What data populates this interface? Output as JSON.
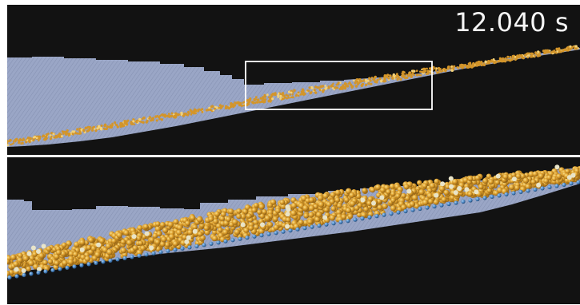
{
  "timestamp": "12.040 s",
  "colors": {
    "background": "#121212",
    "panel_divider": "#e8e8e8",
    "wall_region": "#9aa6c6",
    "wall_hatch": "#7e8aac",
    "particle_fill": "#d89a2a",
    "particle_highlight": "#f6cf6a",
    "particle_dark": "#8a5a12",
    "substrate_particle": "#4a86c4",
    "zoom_box": "#ffffff"
  }
}
